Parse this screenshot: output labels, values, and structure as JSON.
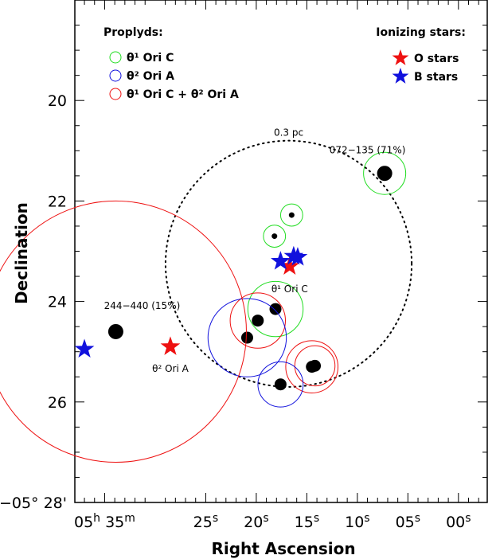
{
  "chart_data": {
    "type": "scatter",
    "xlabel": "Right Ascension",
    "ylabel": "Declination",
    "x_unit": "seconds of RA offset from 05h35m00s",
    "y_unit": "arcminutes of Dec offset from -05°00'",
    "xlim": [
      37.95,
      -2.85
    ],
    "ylim": [
      28,
      18
    ],
    "x_ticks": [
      {
        "value": 35,
        "parts": [
          "05",
          "h",
          " 35",
          "m"
        ]
      },
      {
        "value": 25,
        "parts": [
          "25",
          "s"
        ]
      },
      {
        "value": 20,
        "parts": [
          "20",
          "s"
        ]
      },
      {
        "value": 15,
        "parts": [
          "15",
          "s"
        ]
      },
      {
        "value": 10,
        "parts": [
          "10",
          "s"
        ]
      },
      {
        "value": 5,
        "parts": [
          "05",
          "s"
        ]
      },
      {
        "value": 0,
        "parts": [
          "00",
          "s"
        ]
      }
    ],
    "y_ticks": [
      {
        "value": 20,
        "label": "20"
      },
      {
        "value": 22,
        "label": "22"
      },
      {
        "value": 24,
        "label": "24"
      },
      {
        "value": 26,
        "label": "26"
      },
      {
        "value": 28,
        "label": "−05° 28'"
      }
    ],
    "proplyds": [
      {
        "x": 7.3,
        "y": 21.45,
        "size": "large",
        "ring": "green",
        "ring_r": 0.42
      },
      {
        "x": 16.5,
        "y": 22.28,
        "size": "small",
        "ring": "green",
        "ring_r": 0.22
      },
      {
        "x": 18.2,
        "y": 22.7,
        "size": "small",
        "ring": "green",
        "ring_r": 0.22
      },
      {
        "x": 18.1,
        "y": 24.15,
        "size": "medium",
        "ring": "green",
        "ring_r": 0.55
      },
      {
        "x": 19.85,
        "y": 24.38,
        "size": "medium",
        "ring": "red",
        "ring_r": 0.55
      },
      {
        "x": 20.9,
        "y": 24.72,
        "size": "medium",
        "ring": "blue",
        "ring_r": 0.78
      },
      {
        "x": 33.9,
        "y": 24.6,
        "size": "large",
        "ring": "red",
        "ring_r": 2.6
      },
      {
        "x": 14.5,
        "y": 25.3,
        "size": "medium",
        "ring": "red",
        "ring_r": 0.52
      },
      {
        "x": 14.2,
        "y": 25.28,
        "size": "medium",
        "ring": "red",
        "ring_r": 0.4
      },
      {
        "x": 17.6,
        "y": 25.65,
        "size": "medium",
        "ring": "blue",
        "ring_r": 0.45
      }
    ],
    "ionizing_stars": [
      {
        "x": 16.7,
        "y": 23.3,
        "class": "O"
      },
      {
        "x": 17.6,
        "y": 23.2,
        "class": "B"
      },
      {
        "x": 16.3,
        "y": 23.1,
        "class": "B"
      },
      {
        "x": 15.9,
        "y": 23.12,
        "class": "B"
      },
      {
        "x": 28.5,
        "y": 24.9,
        "class": "O"
      },
      {
        "x": 37.0,
        "y": 24.95,
        "class": "B"
      }
    ],
    "circle_03pc": {
      "cx": 16.8,
      "cy": 23.25,
      "r": 2.45,
      "label": "0.3 pc"
    },
    "annotations": [
      {
        "text": "072−135 (71%)",
        "x": 9.0,
        "y": 21.05
      },
      {
        "text": "244−440 (15%)",
        "x": 31.3,
        "y": 24.15
      },
      {
        "text": "θ¹ Ori C",
        "x": 16.7,
        "y": 23.82
      },
      {
        "text": "θ² Ori A",
        "x": 28.5,
        "y": 25.4
      }
    ],
    "legend_proplyds": {
      "title": "Proplyds:",
      "entries": [
        {
          "ring": "green",
          "label": "θ¹ Ori C"
        },
        {
          "ring": "blue",
          "label": "θ² Ori A"
        },
        {
          "ring": "red",
          "label": "θ¹ Ori C + θ² Ori A"
        }
      ]
    },
    "legend_stars": {
      "title": "Ionizing stars:",
      "entries": [
        {
          "color": "red",
          "label": "O stars"
        },
        {
          "color": "blue",
          "label": "B stars"
        }
      ]
    },
    "colors": {
      "green": "#22dd22",
      "blue": "#1111dd",
      "red": "#ee1111",
      "black": "#000000"
    }
  }
}
